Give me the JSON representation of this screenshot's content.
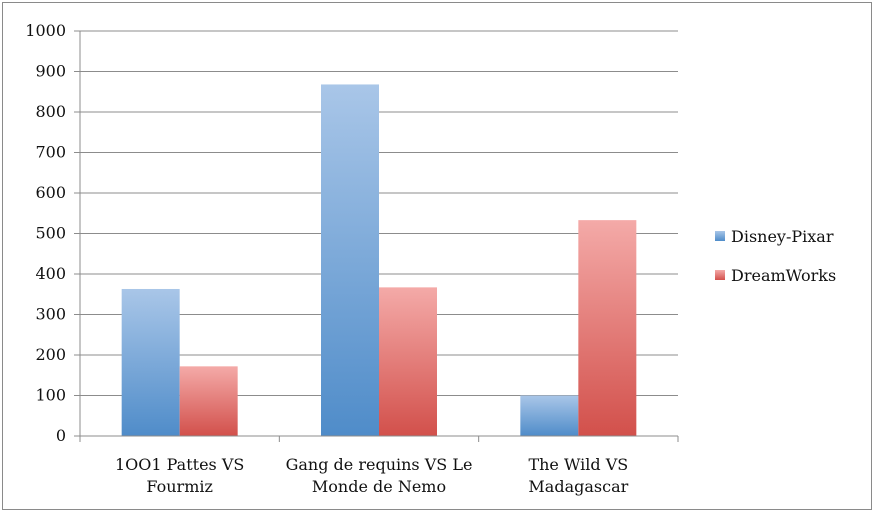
{
  "chart_data": {
    "type": "bar",
    "categories": [
      [
        "1OO1 Pattes VS",
        "Fourmiz"
      ],
      [
        "Gang de requins VS Le",
        "Monde de Nemo"
      ],
      [
        "The Wild VS",
        "Madagascar"
      ]
    ],
    "series": [
      {
        "name": "Disney-Pixar",
        "values": [
          363,
          868,
          100
        ],
        "color_top": "#a9c6e8",
        "color_bottom": "#4f8cc9"
      },
      {
        "name": "DreamWorks",
        "values": [
          172,
          367,
          533
        ],
        "color_top": "#f4aaa8",
        "color_bottom": "#d2504b"
      }
    ],
    "ylim": [
      0,
      1000
    ],
    "yticks": [
      "0",
      "100",
      "200",
      "300",
      "400",
      "500",
      "600",
      "700",
      "800",
      "900",
      "1000"
    ],
    "grid": true,
    "legend_position": "right",
    "title": "",
    "xlabel": "",
    "ylabel": ""
  }
}
